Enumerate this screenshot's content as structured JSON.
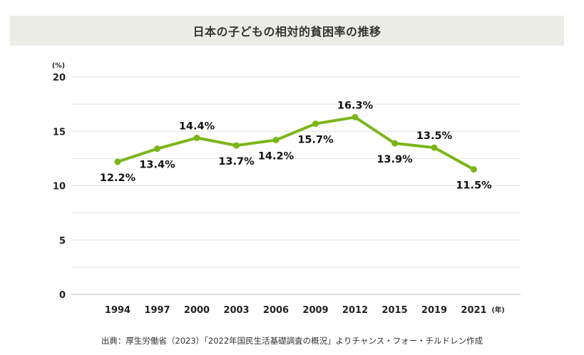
{
  "title": "日本の子どもの相対的貧困率の推移",
  "source": "出典：厚生労働省（2023）「2022年国民生活基礎調査の概況」よりチャンス・フォー・チルドレン作成",
  "chart_data": {
    "type": "line",
    "title": "日本の子どもの相対的貧困率の推移",
    "ylabel": "(%)",
    "xlabel": "(年)",
    "ylim": [
      0,
      20
    ],
    "yticks": [
      0,
      5,
      10,
      15,
      20
    ],
    "grid": true,
    "line_color": "#7cb518",
    "categories": [
      "1994",
      "1997",
      "2000",
      "2003",
      "2006",
      "2009",
      "2012",
      "2015",
      "2019",
      "2021"
    ],
    "series": [
      {
        "values": [
          12.2,
          13.4,
          14.4,
          13.7,
          14.2,
          15.7,
          16.3,
          13.9,
          13.5,
          11.5
        ],
        "labels": [
          "12.2%",
          "13.4%",
          "14.4%",
          "13.7%",
          "14.2%",
          "15.7%",
          "16.3%",
          "13.9%",
          "13.5%",
          "11.5%"
        ],
        "label_positions": [
          "below",
          "below",
          "above",
          "below",
          "below",
          "below",
          "above",
          "below",
          "above",
          "below"
        ]
      }
    ]
  }
}
